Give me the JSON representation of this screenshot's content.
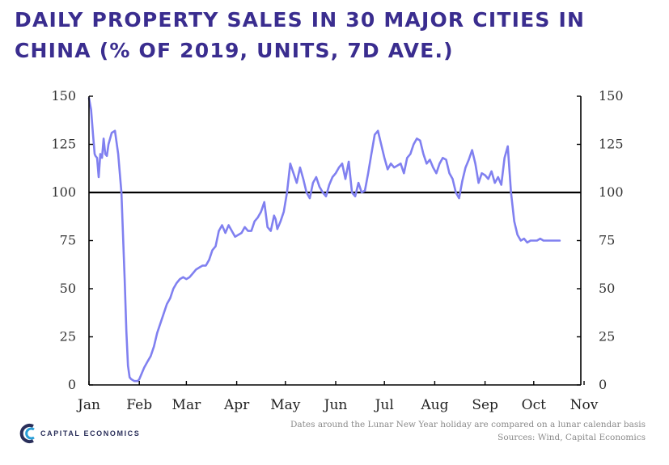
{
  "title_line1": "DAILY PROPERTY SALES IN 30 MAJOR CITIES IN",
  "title_line2": "CHINA (% OF 2019, UNITS, 7D AVE.)",
  "chart_data": {
    "type": "line",
    "title": "DAILY PROPERTY SALES IN 30 MAJOR CITIES IN CHINA (% OF 2019, UNITS, 7D AVE.)",
    "ylim": [
      0,
      150
    ],
    "yticks": [
      0,
      25,
      50,
      75,
      100,
      125,
      150
    ],
    "xticks": [
      "Jan",
      "Feb",
      "Mar",
      "Apr",
      "May",
      "Jun",
      "Jul",
      "Aug",
      "Sep",
      "Oct",
      "Nov"
    ],
    "reference_line": 100,
    "series_color": "#8080f0",
    "reference_color": "#000000",
    "grid": false,
    "series": [
      {
        "x": [
          0,
          1.3,
          2.5,
          3.5,
          4,
          5,
          6,
          7,
          8,
          9,
          10,
          11,
          12,
          13,
          14,
          16,
          18,
          20,
          22,
          23,
          24,
          25,
          26,
          28,
          30,
          31,
          32,
          34,
          36,
          38,
          40,
          42,
          44,
          46,
          48,
          50,
          52,
          54,
          55,
          56,
          58,
          60,
          62,
          64,
          66,
          68,
          70,
          72,
          74,
          76,
          78,
          80,
          82,
          84,
          86,
          88,
          90,
          92,
          94,
          96,
          98,
          100,
          102,
          104,
          106,
          108,
          110,
          112,
          114,
          115,
          116,
          118,
          120,
          122,
          124,
          126,
          128,
          130,
          132,
          134,
          136,
          138,
          140,
          142,
          144,
          146,
          148,
          150,
          152,
          154,
          156,
          158,
          160,
          162,
          164,
          166,
          168,
          170,
          172,
          174,
          176,
          178,
          180,
          182,
          184,
          186,
          188,
          190,
          192,
          194,
          196,
          198,
          200,
          202,
          204,
          206,
          208,
          210,
          212,
          214,
          216,
          218,
          220,
          222,
          224,
          226,
          228,
          230,
          232,
          234,
          236,
          238,
          240,
          242,
          244,
          246,
          248,
          250,
          252,
          254,
          256,
          258,
          260,
          262,
          264,
          266,
          268,
          270,
          272,
          274,
          276,
          278,
          280,
          282,
          284,
          286,
          288,
          290
        ],
        "y": [
          149,
          143,
          130,
          120,
          119,
          118,
          108,
          120,
          118,
          128,
          120,
          119,
          125,
          128,
          131,
          132,
          120,
          100,
          55,
          28,
          10,
          4,
          3,
          2,
          2,
          3,
          5,
          9,
          12,
          15,
          20,
          27,
          32,
          37,
          42,
          45,
          50,
          53,
          54,
          55,
          56,
          55,
          56,
          58,
          60,
          61,
          62,
          62,
          65,
          70,
          72,
          80,
          83,
          79,
          83,
          80,
          77,
          78,
          79,
          82,
          80,
          80,
          85,
          87,
          90,
          95,
          82,
          80,
          88,
          86,
          81,
          85,
          90,
          100,
          115,
          110,
          105,
          113,
          107,
          100,
          97,
          105,
          108,
          103,
          100,
          98,
          104,
          108,
          110,
          113,
          115,
          107,
          116,
          100,
          98,
          105,
          100,
          101,
          110,
          120,
          130,
          132,
          125,
          118,
          112,
          115,
          113,
          114,
          115,
          110,
          118,
          120,
          125,
          128,
          127,
          120,
          115,
          117,
          113,
          110,
          115,
          118,
          117,
          110,
          107,
          100,
          97,
          106,
          113,
          117,
          122,
          115,
          105,
          110,
          109,
          107,
          111,
          105,
          108,
          104,
          118,
          124,
          100,
          85,
          78,
          75,
          76,
          74,
          75,
          75,
          75,
          76,
          75,
          75,
          75,
          75,
          75,
          75
        ]
      }
    ]
  },
  "footer": {
    "logo_text": "CAPITAL ECONOMICS",
    "note": "Dates around the Lunar New Year holiday are compared on a lunar calendar basis",
    "sources": "Sources: Wind, Capital Economics"
  }
}
